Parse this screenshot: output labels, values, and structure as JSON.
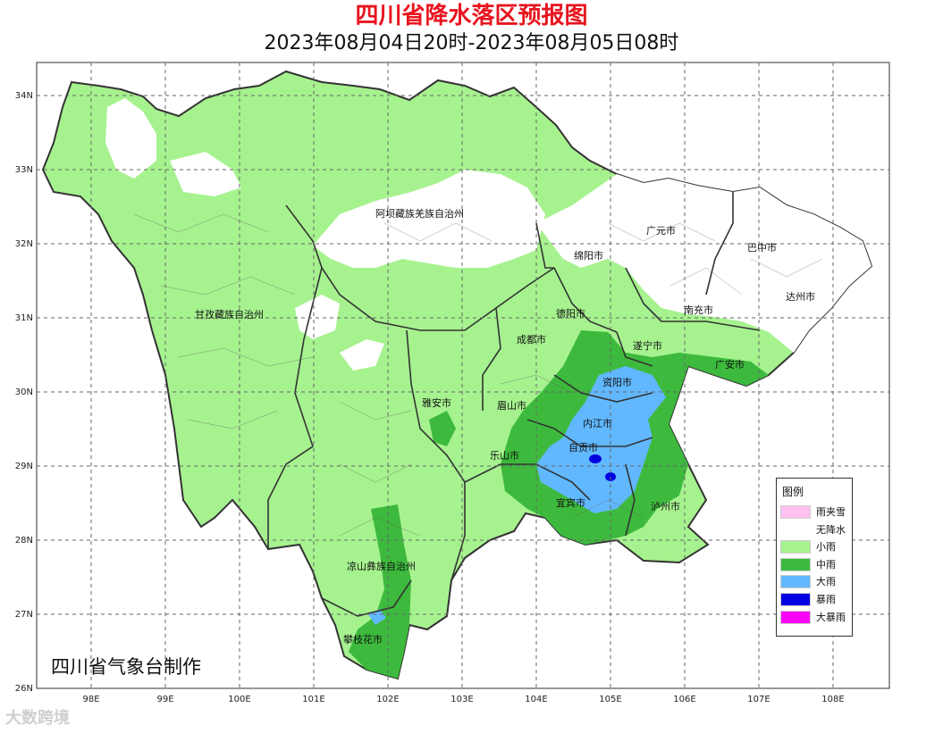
{
  "title": "四川省降水落区预报图",
  "subtitle": "2023年08月04日20时-2023年08月05日08时",
  "credit": "四川省气象台制作",
  "watermark": "大数跨境",
  "axes": {
    "lon_ticks": [
      "98E",
      "99E",
      "100E",
      "101E",
      "102E",
      "103E",
      "104E",
      "105E",
      "106E",
      "107E",
      "108E"
    ],
    "lat_ticks": [
      "34N",
      "33N",
      "32N",
      "31N",
      "30N",
      "29N",
      "28N",
      "27N",
      "26N"
    ]
  },
  "regions": [
    {
      "name": "阿坝藏族羌族自治州"
    },
    {
      "name": "甘孜藏族自治州"
    },
    {
      "name": "凉山彝族自治州"
    },
    {
      "name": "攀枝花市"
    },
    {
      "name": "雅安市"
    },
    {
      "name": "眉山市"
    },
    {
      "name": "乐山市"
    },
    {
      "name": "成都市"
    },
    {
      "name": "德阳市"
    },
    {
      "name": "绵阳市"
    },
    {
      "name": "广元市"
    },
    {
      "name": "巴中市"
    },
    {
      "name": "达州市"
    },
    {
      "name": "南充市"
    },
    {
      "name": "遂宁市"
    },
    {
      "name": "广安市"
    },
    {
      "name": "资阳市"
    },
    {
      "name": "内江市"
    },
    {
      "name": "自贡市"
    },
    {
      "name": "宜宾市"
    },
    {
      "name": "泸州市"
    }
  ],
  "legend": {
    "title": "图例",
    "items": [
      {
        "label": "雨夹雪",
        "color": "#ffc0f0"
      },
      {
        "label": "无降水",
        "color": "#ffffff"
      },
      {
        "label": "小雨",
        "color": "#a6f28f"
      },
      {
        "label": "中雨",
        "color": "#3dba3d"
      },
      {
        "label": "大雨",
        "color": "#61b8ff"
      },
      {
        "label": "暴雨",
        "color": "#0000e1"
      },
      {
        "label": "大暴雨",
        "color": "#fa00fa"
      }
    ]
  }
}
